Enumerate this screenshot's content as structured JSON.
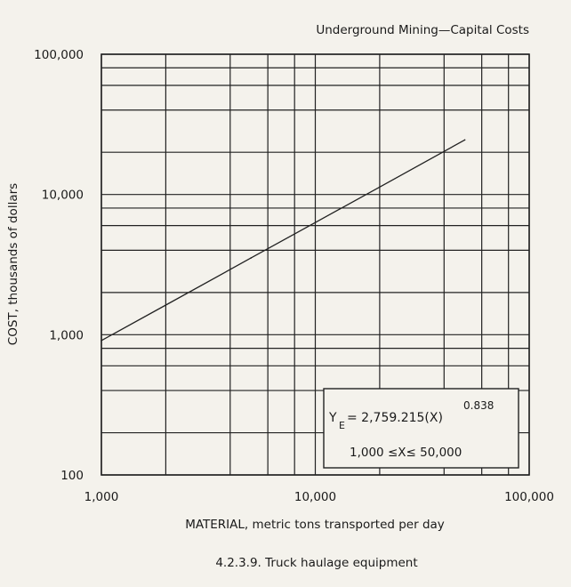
{
  "chart_data": {
    "type": "line",
    "title": "Underground Mining—Capital Costs",
    "caption": "4.2.3.9. Truck haulage equipment",
    "xlabel": "MATERIAL, metric tons transported per day",
    "ylabel": "COST, thousands of dollars",
    "x_scale": "log",
    "y_scale": "log",
    "xlim": [
      1000,
      100000
    ],
    "ylim": [
      100,
      100000
    ],
    "x_ticks": [
      1000,
      10000,
      100000
    ],
    "x_tick_labels": [
      "1,000",
      "10,000",
      "100,000"
    ],
    "y_ticks": [
      100,
      1000,
      10000,
      100000
    ],
    "y_tick_labels": [
      "100",
      "1,000",
      "10,000",
      "100,000"
    ],
    "grid": true,
    "series": [
      {
        "x": [
          1000,
          2000,
          5000,
          10000,
          20000,
          50000
        ],
        "y": [
          908,
          1626,
          3524,
          6311,
          11303,
          24500
        ]
      }
    ],
    "annotation": {
      "y_symbol": "Y",
      "y_subscript": "E",
      "equation_rhs": "= 2,759.215(X)",
      "exponent": "0.838",
      "range": "1,000 ≤X≤ 50,000"
    }
  }
}
